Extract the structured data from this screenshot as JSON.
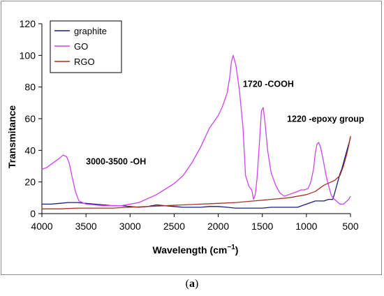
{
  "chart_data": {
    "type": "line",
    "xlabel": "Wavelength",
    "xlabel_unit_base": "cm",
    "xlabel_unit_exp": "−1",
    "ylabel": "Transmitance",
    "xlim": [
      4000,
      500
    ],
    "ylim": [
      0,
      120
    ],
    "x_ticks": [
      4000,
      3500,
      3000,
      2500,
      2000,
      1500,
      1000,
      500
    ],
    "y_ticks": [
      0,
      20,
      40,
      60,
      80,
      100,
      120
    ],
    "grid": false,
    "legend_position": "top-left",
    "series": [
      {
        "name": "graphite",
        "color": "#1a1a80",
        "x": [
          4000,
          3900,
          3800,
          3700,
          3600,
          3500,
          3400,
          3300,
          3200,
          3100,
          3000,
          2900,
          2800,
          2700,
          2600,
          2500,
          2400,
          2300,
          2200,
          2100,
          2000,
          1900,
          1800,
          1700,
          1600,
          1500,
          1400,
          1300,
          1200,
          1100,
          1000,
          900,
          800,
          750,
          700,
          680,
          660,
          640,
          620,
          600,
          580,
          560,
          540,
          520,
          500
        ],
        "values": [
          6,
          6,
          6.5,
          7,
          7,
          6.5,
          6,
          5.5,
          5,
          5,
          4.5,
          4,
          4.5,
          5.5,
          5,
          4.5,
          4,
          4,
          4,
          4.5,
          4.5,
          4,
          3.5,
          3.5,
          3.5,
          3.5,
          4,
          4,
          4,
          4,
          6,
          8,
          8,
          9,
          9,
          13,
          17,
          21,
          25,
          28,
          32,
          36,
          40,
          44,
          48
        ]
      },
      {
        "name": "GO",
        "color": "#cc44ee",
        "x": [
          4000,
          3950,
          3900,
          3850,
          3800,
          3760,
          3720,
          3690,
          3660,
          3620,
          3580,
          3500,
          3300,
          3100,
          2900,
          2700,
          2500,
          2400,
          2300,
          2200,
          2100,
          2000,
          1950,
          1900,
          1870,
          1850,
          1830,
          1800,
          1760,
          1720,
          1690,
          1650,
          1620,
          1600,
          1580,
          1560,
          1530,
          1510,
          1490,
          1470,
          1440,
          1400,
          1350,
          1300,
          1250,
          1200,
          1150,
          1100,
          1060,
          1020,
          980,
          950,
          920,
          900,
          880,
          860,
          840,
          810,
          780,
          760,
          740,
          720,
          700,
          680,
          660,
          640,
          620,
          600,
          580,
          560,
          540,
          520,
          500
        ],
        "values": [
          28,
          29,
          31,
          33,
          35,
          37,
          36,
          32,
          24,
          14,
          8,
          6,
          5,
          5,
          7,
          12,
          19,
          24,
          32,
          42,
          54,
          62,
          68,
          76,
          86,
          96,
          100,
          94,
          78,
          55,
          24,
          17,
          15,
          9,
          12,
          22,
          47,
          65,
          67,
          58,
          40,
          26,
          18,
          13,
          11,
          12,
          13,
          14,
          15,
          15,
          16,
          20,
          28,
          38,
          44,
          45,
          42,
          34,
          25,
          20,
          16,
          12,
          10,
          9,
          8,
          7,
          6,
          6,
          6,
          7,
          8,
          9,
          11
        ]
      },
      {
        "name": "RGO",
        "color": "#a83222",
        "x": [
          4000,
          3800,
          3600,
          3400,
          3200,
          3000,
          2800,
          2600,
          2400,
          2200,
          2000,
          1800,
          1600,
          1400,
          1200,
          1000,
          900,
          800,
          720,
          680,
          640,
          620,
          600,
          580,
          560,
          540,
          520,
          500
        ],
        "values": [
          3,
          3,
          3.5,
          3.5,
          3.5,
          4,
          4.5,
          5,
          5.5,
          6,
          6.5,
          7,
          8,
          9,
          10,
          12,
          14,
          18,
          20,
          21,
          23,
          24,
          27,
          30,
          34,
          38,
          43,
          49
        ]
      }
    ],
    "annotations": [
      {
        "text": "1720 -COOH",
        "x": 1720,
        "y": 80
      },
      {
        "text": "1220 -epoxy group",
        "x": 1220,
        "y": 58
      },
      {
        "text": "3000-3500 -OH",
        "x": 3500,
        "y": 31
      }
    ]
  },
  "caption": {
    "open": "(",
    "label": "a",
    "close": ")"
  }
}
